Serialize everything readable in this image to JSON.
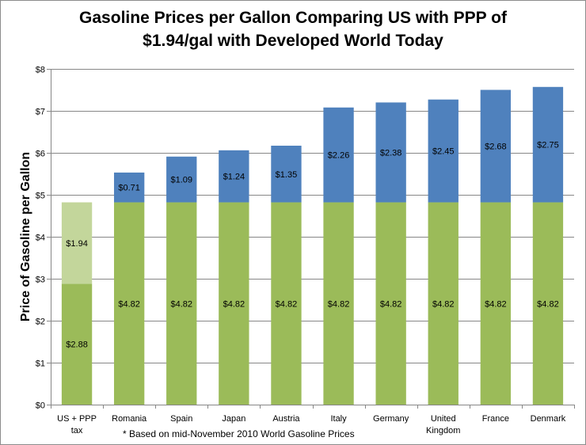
{
  "chart_data": {
    "type": "bar",
    "stacked": true,
    "title_lines": [
      "Gasoline Prices per Gallon Comparing US with PPP of",
      "$1.94/gal with Developed World Today"
    ],
    "ylabel": "Price of Gasoline per Gallon",
    "xlabel": "",
    "ylim": [
      0,
      8
    ],
    "y_ticks": [
      "$0",
      "$1",
      "$2",
      "$3",
      "$4",
      "$5",
      "$6",
      "$7",
      "$8"
    ],
    "gridlines": true,
    "legend": "none",
    "footnote": "* Based on mid-November 2010 World Gasoline Prices",
    "categories": [
      [
        "US + PPP",
        "tax"
      ],
      [
        "Romania"
      ],
      [
        "Spain"
      ],
      [
        "Japan"
      ],
      [
        "Austria"
      ],
      [
        "Italy"
      ],
      [
        "Germany"
      ],
      [
        "United",
        "Kingdom"
      ],
      [
        "France"
      ],
      [
        "Denmark"
      ]
    ],
    "series": [
      {
        "values": [
          2.88,
          4.82,
          4.82,
          4.82,
          4.82,
          4.82,
          4.82,
          4.82,
          4.82,
          4.82
        ],
        "labels": [
          "$2.88",
          "$4.82",
          "$4.82",
          "$4.82",
          "$4.82",
          "$4.82",
          "$4.82",
          "$4.82",
          "$4.82",
          "$4.82"
        ],
        "color": "#9bbb59"
      },
      {
        "values": [
          1.94,
          0.71,
          1.09,
          1.24,
          1.35,
          2.26,
          2.38,
          2.45,
          2.68,
          2.75
        ],
        "labels": [
          "$1.94",
          "$0.71",
          "$1.09",
          "$1.24",
          "$1.35",
          "$2.26",
          "$2.38",
          "$2.45",
          "$2.68",
          "$2.75"
        ],
        "color": "#4f81bd",
        "point_colors": [
          "#c3d69b",
          null,
          null,
          null,
          null,
          null,
          null,
          null,
          null,
          null
        ]
      }
    ]
  }
}
